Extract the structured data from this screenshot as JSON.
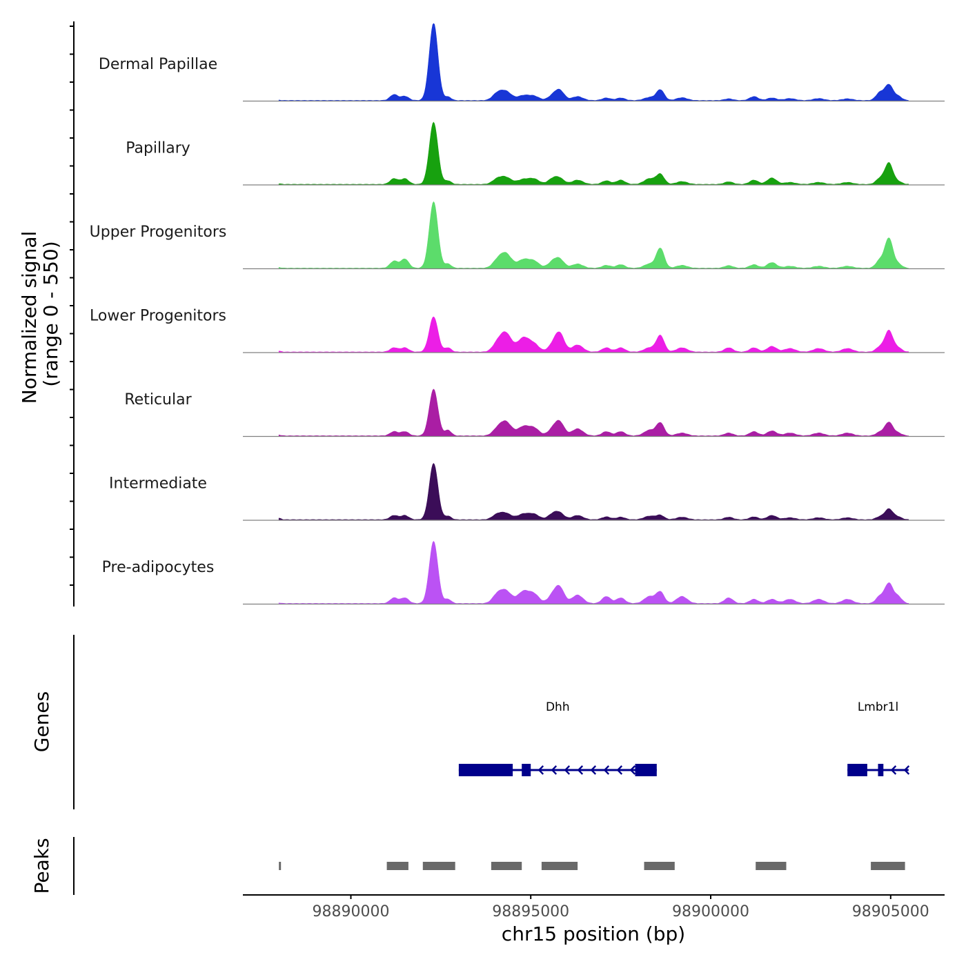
{
  "chart_data": {
    "type": "area",
    "chromosome": "chr15",
    "xlabel": "chr15 position (bp)",
    "ylabel_line1": "Normalized signal",
    "ylabel_line2": "(range 0 - 550)",
    "signal_range": [
      0,
      550
    ],
    "xlim": [
      98887000,
      98906500
    ],
    "x_ticks": [
      98890000,
      98895000,
      98900000,
      98905000
    ],
    "x_tick_labels": [
      "98890000",
      "98895000",
      "98900000",
      "98905000"
    ],
    "peak_shape": [
      {
        "pos": 98888000,
        "w": 60
      },
      {
        "pos": 98891200,
        "w": 110
      },
      {
        "pos": 98891500,
        "w": 110
      },
      {
        "pos": 98892300,
        "w": 120
      },
      {
        "pos": 98892700,
        "w": 90
      },
      {
        "pos": 98894050,
        "w": 130
      },
      {
        "pos": 98894300,
        "w": 160
      },
      {
        "pos": 98894800,
        "w": 160
      },
      {
        "pos": 98895100,
        "w": 140
      },
      {
        "pos": 98895600,
        "w": 130
      },
      {
        "pos": 98895800,
        "w": 130
      },
      {
        "pos": 98896300,
        "w": 150
      },
      {
        "pos": 98897100,
        "w": 120
      },
      {
        "pos": 98897500,
        "w": 120
      },
      {
        "pos": 98898300,
        "w": 150
      },
      {
        "pos": 98898600,
        "w": 110
      },
      {
        "pos": 98899200,
        "w": 150
      },
      {
        "pos": 98900500,
        "w": 120
      },
      {
        "pos": 98901200,
        "w": 120
      },
      {
        "pos": 98901700,
        "w": 130
      },
      {
        "pos": 98902200,
        "w": 150
      },
      {
        "pos": 98903000,
        "w": 150
      },
      {
        "pos": 98903800,
        "w": 150
      },
      {
        "pos": 98904700,
        "w": 110
      },
      {
        "pos": 98904950,
        "w": 110
      },
      {
        "pos": 98905200,
        "w": 110
      }
    ],
    "tracks": [
      {
        "name": "Dermal Papillae",
        "color": "#1836d6",
        "heights": [
          2,
          42,
          30,
          550,
          25,
          40,
          65,
          35,
          28,
          28,
          70,
          28,
          18,
          18,
          22,
          75,
          20,
          12,
          28,
          18,
          14,
          14,
          12,
          55,
          110,
          30
        ]
      },
      {
        "name": "Papillary",
        "color": "#17a10f",
        "heights": [
          4,
          40,
          40,
          440,
          25,
          30,
          50,
          35,
          35,
          35,
          40,
          30,
          25,
          30,
          40,
          70,
          20,
          18,
          30,
          45,
          14,
          14,
          14,
          40,
          150,
          20
        ]
      },
      {
        "name": "Upper Progenitors",
        "color": "#5cdc6b",
        "heights": [
          5,
          50,
          65,
          470,
          30,
          40,
          105,
          60,
          45,
          40,
          60,
          30,
          20,
          25,
          30,
          140,
          20,
          18,
          25,
          40,
          14,
          14,
          14,
          55,
          210,
          30
        ]
      },
      {
        "name": "Lower Progenitors",
        "color": "#ec1ee6",
        "heights": [
          6,
          30,
          30,
          250,
          30,
          45,
          135,
          100,
          50,
          40,
          130,
          50,
          30,
          30,
          30,
          115,
          30,
          30,
          30,
          40,
          25,
          25,
          25,
          35,
          150,
          30
        ]
      },
      {
        "name": "Reticular",
        "color": "#aa1ea4",
        "heights": [
          6,
          30,
          30,
          330,
          40,
          35,
          100,
          65,
          50,
          40,
          95,
          50,
          30,
          30,
          40,
          90,
          20,
          20,
          30,
          35,
          20,
          20,
          20,
          25,
          95,
          20
        ]
      },
      {
        "name": "Intermediate",
        "color": "#3b0d58",
        "heights": [
          10,
          30,
          30,
          400,
          25,
          30,
          45,
          40,
          35,
          35,
          45,
          30,
          20,
          18,
          25,
          30,
          18,
          18,
          20,
          30,
          14,
          14,
          14,
          20,
          75,
          20
        ]
      },
      {
        "name": "Pre-adipocytes",
        "color": "#bb52f4",
        "heights": [
          4,
          40,
          40,
          440,
          30,
          50,
          90,
          85,
          60,
          50,
          110,
          60,
          50,
          40,
          50,
          80,
          50,
          40,
          30,
          30,
          30,
          30,
          30,
          50,
          140,
          50
        ]
      }
    ],
    "genes": [
      {
        "name": "Dhh",
        "start": 98893000,
        "end": 98898500,
        "strand": "-",
        "color": "#00008b",
        "exons": [
          [
            98893000,
            98894500
          ],
          [
            98894750,
            98895000
          ],
          [
            98897900,
            98898500
          ]
        ]
      },
      {
        "name": "Lmbr1l",
        "start": 98903800,
        "end": 98905500,
        "strand": "-",
        "color": "#00008b",
        "exons": [
          [
            98903800,
            98904350
          ],
          [
            98904650,
            98904800
          ]
        ]
      }
    ],
    "peaks": [
      [
        98888000,
        98888050
      ],
      [
        98891000,
        98891600
      ],
      [
        98892000,
        98892900
      ],
      [
        98893900,
        98894750
      ],
      [
        98895300,
        98896300
      ],
      [
        98898150,
        98899000
      ],
      [
        98901250,
        98902100
      ],
      [
        98904450,
        98905400
      ]
    ],
    "peak_color": "#696969",
    "panel_titles": {
      "genes": "Genes",
      "peaks": "Peaks"
    }
  }
}
